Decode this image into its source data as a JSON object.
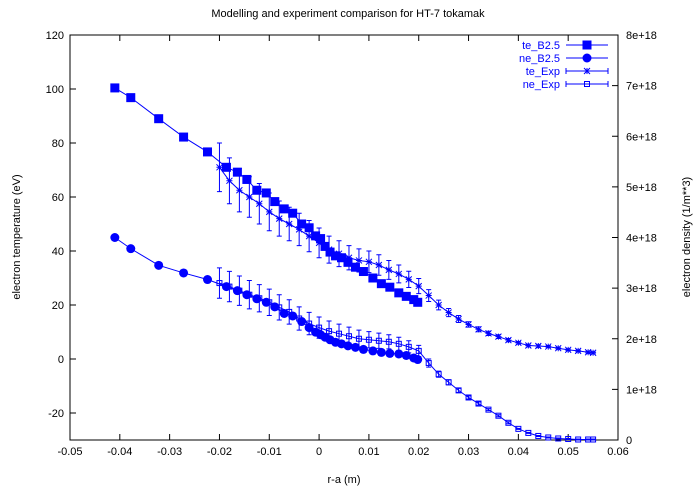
{
  "chart_data": {
    "type": "line",
    "title": "Modelling and experiment comparison for HT-7 tokamak",
    "xlabel": "r-a (m)",
    "ylabel": "electron temperature (eV)",
    "y2label": "electron density (1/m**3)",
    "xlim": [
      -0.05,
      0.06
    ],
    "ylim": [
      -30,
      120
    ],
    "y2lim": [
      0,
      8e+18
    ],
    "xticks": [
      -0.05,
      -0.04,
      -0.03,
      -0.02,
      -0.01,
      0,
      0.01,
      0.02,
      0.03,
      0.04,
      0.05,
      0.06
    ],
    "xtick_labels": [
      "-0.05",
      "-0.04",
      "-0.03",
      "-0.02",
      "-0.01",
      "0",
      "0.01",
      "0.02",
      "0.03",
      "0.04",
      "0.05",
      "0.06"
    ],
    "yticks": [
      -20,
      0,
      20,
      40,
      60,
      80,
      100,
      120
    ],
    "ytick_labels": [
      "-20",
      "0",
      "20",
      "40",
      "60",
      "80",
      "100",
      "120"
    ],
    "y2ticks": [
      0,
      1e+18,
      2e+18,
      3e+18,
      4e+18,
      5e+18,
      6e+18,
      7e+18,
      8e+18
    ],
    "y2tick_labels": [
      "0",
      "1e+18",
      "2e+18",
      "3e+18",
      "4e+18",
      "5e+18",
      "6e+18",
      "7e+18",
      "8e+18"
    ],
    "grid": false,
    "legend_position": "top-right",
    "color": "#0000ff",
    "series": [
      {
        "name": "te_B2.5",
        "axis": "left",
        "marker": "filled-square",
        "x": [
          -0.041,
          -0.0378,
          -0.0322,
          -0.0272,
          -0.0224,
          -0.0186,
          -0.0164,
          -0.0145,
          -0.0125,
          -0.0106,
          -0.0089,
          -0.007,
          -0.0053,
          -0.0035,
          -0.002,
          -0.0007,
          0.0003,
          0.0012,
          0.0022,
          0.0033,
          0.0045,
          0.0058,
          0.0073,
          0.0089,
          0.0108,
          0.0125,
          0.0142,
          0.016,
          0.0175,
          0.019,
          0.0198
        ],
        "y": [
          100.4,
          96.8,
          89.0,
          82.2,
          76.7,
          71.0,
          69.2,
          66.5,
          62.5,
          61.5,
          58.3,
          55.6,
          54.0,
          50.0,
          48.6,
          45.6,
          44.6,
          41.7,
          39.6,
          38.2,
          37.5,
          35.8,
          34.0,
          32.4,
          30.0,
          27.9,
          26.6,
          24.5,
          23.2,
          22.0,
          21.0
        ]
      },
      {
        "name": "ne_B2.5",
        "axis": "right",
        "marker": "filled-circle",
        "x": [
          -0.041,
          -0.0378,
          -0.0322,
          -0.0272,
          -0.0224,
          -0.0186,
          -0.0164,
          -0.0145,
          -0.0125,
          -0.0106,
          -0.0089,
          -0.007,
          -0.0053,
          -0.0035,
          -0.002,
          -0.0007,
          0.0003,
          0.0012,
          0.0022,
          0.0033,
          0.0045,
          0.0058,
          0.0073,
          0.0089,
          0.0108,
          0.0125,
          0.0142,
          0.016,
          0.0175,
          0.019,
          0.0198
        ],
        "y": [
          4e+18,
          3.78e+18,
          3.45e+18,
          3.3e+18,
          3.17e+18,
          3.03e+18,
          2.95e+18,
          2.87e+18,
          2.79e+18,
          2.72e+18,
          2.63e+18,
          2.5e+18,
          2.45e+18,
          2.34e+18,
          2.22e+18,
          2.13e+18,
          2.08e+18,
          2.03e+18,
          1.98e+18,
          1.93e+18,
          1.9e+18,
          1.86e+18,
          1.83e+18,
          1.79e+18,
          1.76e+18,
          1.73e+18,
          1.71e+18,
          1.7e+18,
          1.67e+18,
          1.62e+18,
          1.59e+18
        ]
      },
      {
        "name": "te_Exp",
        "axis": "left",
        "marker": "star",
        "error_bars": true,
        "x": [
          -0.02,
          -0.018,
          -0.016,
          -0.014,
          -0.012,
          -0.01,
          -0.008,
          -0.006,
          -0.004,
          -0.002,
          0.0,
          0.002,
          0.004,
          0.006,
          0.008,
          0.01,
          0.012,
          0.014,
          0.016,
          0.018,
          0.02,
          0.022,
          0.024,
          0.026,
          0.028,
          0.03,
          0.032,
          0.034,
          0.036,
          0.038,
          0.04,
          0.042,
          0.044,
          0.046,
          0.048,
          0.05,
          0.052,
          0.054,
          0.055
        ],
        "y": [
          71.0,
          66.0,
          62.5,
          60.0,
          57.5,
          54.5,
          52.0,
          50.0,
          48.0,
          45.5,
          43.0,
          40.5,
          39.0,
          37.5,
          36.5,
          36.0,
          34.8,
          33.0,
          31.5,
          29.5,
          27.0,
          23.5,
          20.0,
          17.2,
          14.8,
          12.8,
          11.0,
          9.5,
          8.3,
          7.0,
          6.0,
          5.0,
          4.8,
          4.6,
          4.0,
          3.4,
          3.0,
          2.5,
          2.3
        ],
        "error": [
          9.0,
          8.5,
          8.0,
          7.5,
          7.5,
          7.0,
          6.5,
          6.2,
          6.0,
          5.8,
          5.5,
          5.0,
          4.8,
          4.5,
          4.3,
          4.0,
          3.8,
          3.5,
          3.3,
          3.0,
          2.8,
          2.2,
          1.8,
          1.5,
          1.3,
          1.0,
          0.9,
          0.8,
          0.7,
          0.6,
          0.5,
          0.5,
          0.5,
          0.4,
          0.4,
          0.4,
          0.4,
          0.4,
          0.4
        ]
      },
      {
        "name": "ne_Exp",
        "axis": "right",
        "marker": "open-square",
        "error_bars": true,
        "x": [
          -0.02,
          -0.018,
          -0.016,
          -0.014,
          -0.012,
          -0.01,
          -0.008,
          -0.006,
          -0.004,
          -0.002,
          0.0,
          0.002,
          0.004,
          0.006,
          0.008,
          0.01,
          0.012,
          0.014,
          0.016,
          0.018,
          0.02,
          0.022,
          0.024,
          0.026,
          0.028,
          0.03,
          0.032,
          0.034,
          0.036,
          0.038,
          0.04,
          0.042,
          0.044,
          0.046,
          0.048,
          0.05,
          0.052,
          0.054,
          0.055
        ],
        "y": [
          3.1e+18,
          3.03e+18,
          2.95e+18,
          2.87e+18,
          2.8e+18,
          2.72e+18,
          2.62e+18,
          2.53e+18,
          2.4e+18,
          2.3e+18,
          2.22e+18,
          2.15e+18,
          2.1e+18,
          2.05e+18,
          2e+18,
          1.98e+18,
          1.96e+18,
          1.94e+18,
          1.9e+18,
          1.84e+18,
          1.76e+18,
          1.52e+18,
          1.3e+18,
          1.14e+18,
          9.8e+17,
          8.4e+17,
          7.2e+17,
          6e+17,
          4.8e+17,
          3.4e+17,
          2.2e+17,
          1.4e+17,
          8e+16,
          5e+16,
          3e+16,
          2e+16,
          1e+16,
          1e+16,
          1e+16
        ],
        "error": [
          3e+17,
          3e+17,
          2.9e+17,
          2.8e+17,
          2.7e+17,
          2.6e+17,
          2.5e+17,
          2.4e+17,
          2.3e+17,
          2.2e+17,
          2.1e+17,
          2e+17,
          1.9e+17,
          1.8e+17,
          1.7e+17,
          1.6e+17,
          1.5e+17,
          1.4e+17,
          1.3e+17,
          1.2e+17,
          1.1e+17,
          8e+16,
          6e+16,
          5e+16,
          4e+16,
          3e+16,
          3e+16,
          2e+16,
          2e+16,
          2e+16,
          1e+16,
          1e+16,
          1e+16,
          1e+16,
          1e+16,
          1e+16,
          1e+16,
          1e+16,
          1e+16
        ]
      }
    ]
  }
}
